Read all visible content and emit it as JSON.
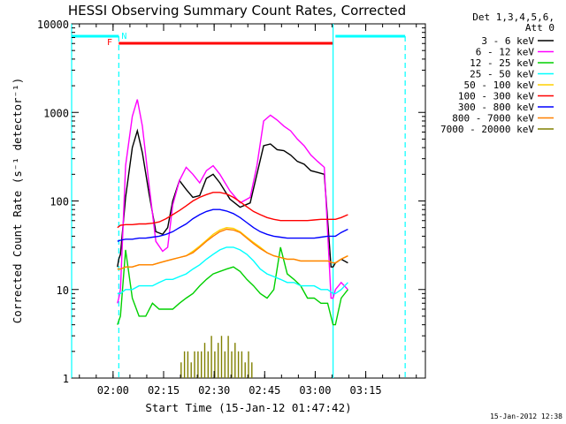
{
  "chart_data": {
    "type": "line",
    "title": "HESSI Observing Summary Count Rates, Corrected",
    "xlabel": "Start Time (15-Jan-12 01:47:42)",
    "ylabel": "Corrected Count Rate (s⁻¹ detector⁻¹)",
    "x_unit": "minutes after 01:47:42 UT",
    "xlim": [
      0,
      105
    ],
    "yscale": "log",
    "ylim": [
      1,
      10000
    ],
    "x_ticks": [
      "02:00",
      "02:15",
      "02:30",
      "02:45",
      "03:00",
      "03:15"
    ],
    "x_tick_values": [
      "02:00",
      "02:15",
      "02:30",
      "02:45",
      "03:00",
      "03:15"
    ],
    "y_ticks": [
      "1",
      "10",
      "100",
      "1000",
      "10000"
    ],
    "legend_placement": "right",
    "legend_header": [
      "Det 1,3,4,5,6,",
      "Att 0"
    ],
    "grid": false,
    "markers": [
      {
        "label": "F",
        "color": "#ff0000"
      },
      {
        "label": "N",
        "color": "#00ffff"
      }
    ],
    "series": [
      {
        "name": "3 - 6 keV",
        "color": "#000000",
        "x": [
          13.6,
          14.0,
          14.5,
          16,
          18,
          19.5,
          21,
          23,
          25,
          27,
          28.5,
          30,
          32,
          34,
          36,
          38,
          40,
          42,
          44,
          47,
          50,
          53,
          55,
          57,
          59,
          61,
          63,
          65,
          67,
          69,
          71,
          73,
          75,
          77,
          77.6,
          78.3,
          80,
          82
        ],
        "y": [
          18,
          22,
          25,
          110,
          400,
          620,
          350,
          120,
          45,
          42,
          50,
          100,
          170,
          135,
          110,
          115,
          180,
          200,
          160,
          105,
          85,
          95,
          200,
          420,
          440,
          380,
          370,
          330,
          280,
          260,
          220,
          210,
          200,
          18,
          18,
          20,
          22,
          20
        ]
      },
      {
        "name": "6 - 12 keV",
        "color": "#ff00ff",
        "x": [
          13.6,
          14.0,
          14.5,
          16,
          18,
          19.5,
          21,
          23,
          25,
          27,
          28.5,
          30,
          32,
          34,
          36,
          38,
          40,
          42,
          44,
          47,
          50,
          53,
          55,
          57,
          59,
          61,
          63,
          65,
          67,
          69,
          71,
          73,
          75,
          77,
          77.6,
          78.3,
          80,
          82
        ],
        "y": [
          7,
          8,
          10,
          250,
          900,
          1400,
          700,
          150,
          35,
          27,
          30,
          90,
          170,
          240,
          200,
          160,
          220,
          250,
          200,
          130,
          95,
          110,
          250,
          800,
          930,
          820,
          700,
          620,
          500,
          420,
          330,
          280,
          240,
          8,
          8,
          10,
          12,
          10
        ]
      },
      {
        "name": "12 - 25 keV",
        "color": "#00d000",
        "x": [
          13.6,
          14.5,
          16,
          18,
          20,
          22,
          24,
          26,
          28,
          30,
          32,
          34,
          36,
          38,
          40,
          42,
          44,
          46,
          48,
          50,
          52,
          54,
          56,
          58,
          60,
          62,
          64,
          66,
          68,
          70,
          72,
          74,
          76,
          77.6,
          78.3,
          80,
          82
        ],
        "y": [
          4,
          5,
          28,
          8,
          5,
          5,
          7,
          6,
          6,
          6,
          7,
          8,
          9,
          11,
          13,
          15,
          16,
          17,
          18,
          16,
          13,
          11,
          9,
          8,
          10,
          30,
          15,
          13,
          11,
          8,
          8,
          7,
          7,
          4,
          4,
          8,
          10
        ]
      },
      {
        "name": "25 - 50 keV",
        "color": "#00ffff",
        "x": [
          13.6,
          14.5,
          16,
          18,
          20,
          22,
          24,
          26,
          28,
          30,
          32,
          34,
          36,
          38,
          40,
          42,
          44,
          46,
          48,
          50,
          52,
          54,
          56,
          58,
          60,
          62,
          64,
          66,
          68,
          70,
          72,
          74,
          76,
          77.6,
          78.3,
          80,
          82
        ],
        "y": [
          9,
          9,
          10,
          10,
          11,
          11,
          11,
          12,
          13,
          13,
          14,
          15,
          17,
          19,
          22,
          25,
          28,
          30,
          30,
          28,
          25,
          21,
          17,
          15,
          14,
          13,
          12,
          12,
          11,
          11,
          11,
          10,
          10,
          9,
          9,
          10,
          12
        ]
      },
      {
        "name": "50 - 100 keV",
        "color": "#ffd000",
        "x": [
          13.6,
          14.5,
          16,
          18,
          20,
          22,
          24,
          26,
          28,
          30,
          32,
          34,
          36,
          38,
          40,
          42,
          44,
          46,
          48,
          50,
          52,
          54,
          56,
          58,
          60,
          62,
          64,
          66,
          68,
          70,
          72,
          74,
          76,
          77.6,
          78.3,
          80,
          82
        ],
        "y": [
          17,
          17,
          18,
          18,
          19,
          19,
          19,
          20,
          21,
          22,
          23,
          24,
          27,
          31,
          36,
          42,
          47,
          50,
          49,
          45,
          39,
          34,
          30,
          26,
          24,
          23,
          22,
          22,
          21,
          21,
          21,
          21,
          21,
          20,
          20,
          22,
          24
        ]
      },
      {
        "name": "100 - 300 keV",
        "color": "#ff0000",
        "x": [
          13.6,
          14.5,
          16,
          18,
          20,
          22,
          24,
          26,
          28,
          30,
          32,
          34,
          36,
          38,
          40,
          42,
          44,
          46,
          48,
          50,
          52,
          54,
          56,
          58,
          60,
          62,
          64,
          66,
          68,
          70,
          72,
          74,
          76,
          77.6,
          78.3,
          80,
          82
        ],
        "y": [
          50,
          53,
          54,
          54,
          55,
          55,
          56,
          58,
          63,
          70,
          78,
          88,
          100,
          110,
          118,
          125,
          125,
          120,
          110,
          98,
          86,
          76,
          70,
          65,
          62,
          60,
          60,
          60,
          60,
          60,
          61,
          62,
          62,
          62,
          62,
          65,
          70
        ]
      },
      {
        "name": "300 - 800 keV",
        "color": "#0000ff",
        "x": [
          13.6,
          14.5,
          16,
          18,
          20,
          22,
          24,
          26,
          28,
          30,
          32,
          34,
          36,
          38,
          40,
          42,
          44,
          46,
          48,
          50,
          52,
          54,
          56,
          58,
          60,
          62,
          64,
          66,
          68,
          70,
          72,
          74,
          76,
          77.6,
          78.3,
          80,
          82
        ],
        "y": [
          35,
          36,
          37,
          37,
          38,
          38,
          39,
          40,
          42,
          45,
          50,
          55,
          63,
          70,
          76,
          80,
          80,
          77,
          72,
          65,
          57,
          50,
          45,
          42,
          40,
          39,
          38,
          38,
          38,
          38,
          38,
          39,
          40,
          40,
          40,
          44,
          48
        ]
      },
      {
        "name": "800 - 7000 keV",
        "color": "#ff8000",
        "x": [
          13.6,
          14.5,
          16,
          18,
          20,
          22,
          24,
          26,
          28,
          30,
          32,
          34,
          36,
          38,
          40,
          42,
          44,
          46,
          48,
          50,
          52,
          54,
          56,
          58,
          60,
          62,
          64,
          66,
          68,
          70,
          72,
          74,
          76,
          77.6,
          78.3,
          80,
          82
        ],
        "y": [
          17,
          17,
          18,
          18,
          19,
          19,
          19,
          20,
          21,
          22,
          23,
          24,
          26,
          30,
          35,
          40,
          45,
          48,
          47,
          44,
          38,
          33,
          29,
          26,
          24,
          23,
          22,
          22,
          21,
          21,
          21,
          21,
          21,
          20,
          20,
          22,
          24
        ]
      },
      {
        "name": "7000 - 20000 keV",
        "color": "#808000",
        "x": [
          32.5,
          33.5,
          34.5,
          35.5,
          36.5,
          37.5,
          38.5,
          39.5,
          40.5,
          41.5,
          42.5,
          43.5,
          44.5,
          45.5,
          46.5,
          47.5,
          48.5,
          49.5,
          50.5,
          51.5,
          52.5,
          53.5
        ],
        "y": [
          1.5,
          2,
          2,
          1.5,
          2,
          2,
          2,
          2.5,
          2,
          3,
          2,
          2.5,
          3,
          2,
          3,
          2,
          2.5,
          2,
          2,
          1.5,
          2,
          1.5
        ]
      }
    ]
  },
  "footer_timestamp": "15-Jan-2012 12:38"
}
